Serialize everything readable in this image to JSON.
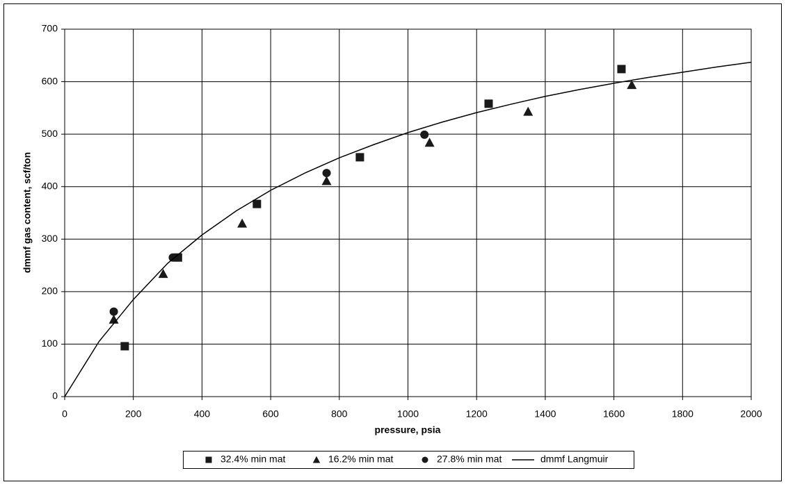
{
  "chart_data": {
    "type": "scatter",
    "x_label": "pressure, psia",
    "y_label": "dmmf gas content, scf/ton",
    "xlim": [
      0,
      2000
    ],
    "xticks": [
      0,
      200,
      400,
      600,
      800,
      1000,
      1200,
      1400,
      1600,
      1800,
      2000
    ],
    "ylim": [
      0,
      700
    ],
    "yticks": [
      0,
      100,
      200,
      300,
      400,
      500,
      600,
      700
    ],
    "grid": true,
    "legend": "bottom",
    "series": [
      {
        "name": "32.4% min mat",
        "color": "#1a1a1a",
        "marker": "square",
        "x": [
          175,
          330,
          560,
          860,
          1235,
          1622
        ],
        "values": [
          96,
          265,
          367,
          456,
          558,
          624
        ]
      },
      {
        "name": "16.2% min mat",
        "color": "#1a1a1a",
        "marker": "triangle",
        "x": [
          143,
          287,
          517,
          763,
          1063,
          1350,
          1652
        ],
        "values": [
          147,
          234,
          330,
          411,
          484,
          543,
          594
        ]
      },
      {
        "name": "27.8% min mat",
        "color": "#1a1a1a",
        "marker": "circle",
        "x": [
          143,
          315,
          763,
          1048
        ],
        "values": [
          162,
          265,
          426,
          499
        ]
      },
      {
        "name": "dmmf Langmuir",
        "color": "#000000",
        "marker": "line",
        "x": [
          0,
          100,
          200,
          300,
          400,
          500,
          600,
          700,
          800,
          900,
          1000,
          1100,
          1200,
          1300,
          1400,
          1500,
          1600,
          1700,
          1800,
          1900,
          2000
        ],
        "values": [
          0,
          105,
          185,
          254,
          308,
          354,
          393,
          426,
          455,
          480,
          503,
          523,
          541,
          557,
          572,
          585,
          597,
          608,
          618,
          628,
          637
        ]
      }
    ]
  }
}
